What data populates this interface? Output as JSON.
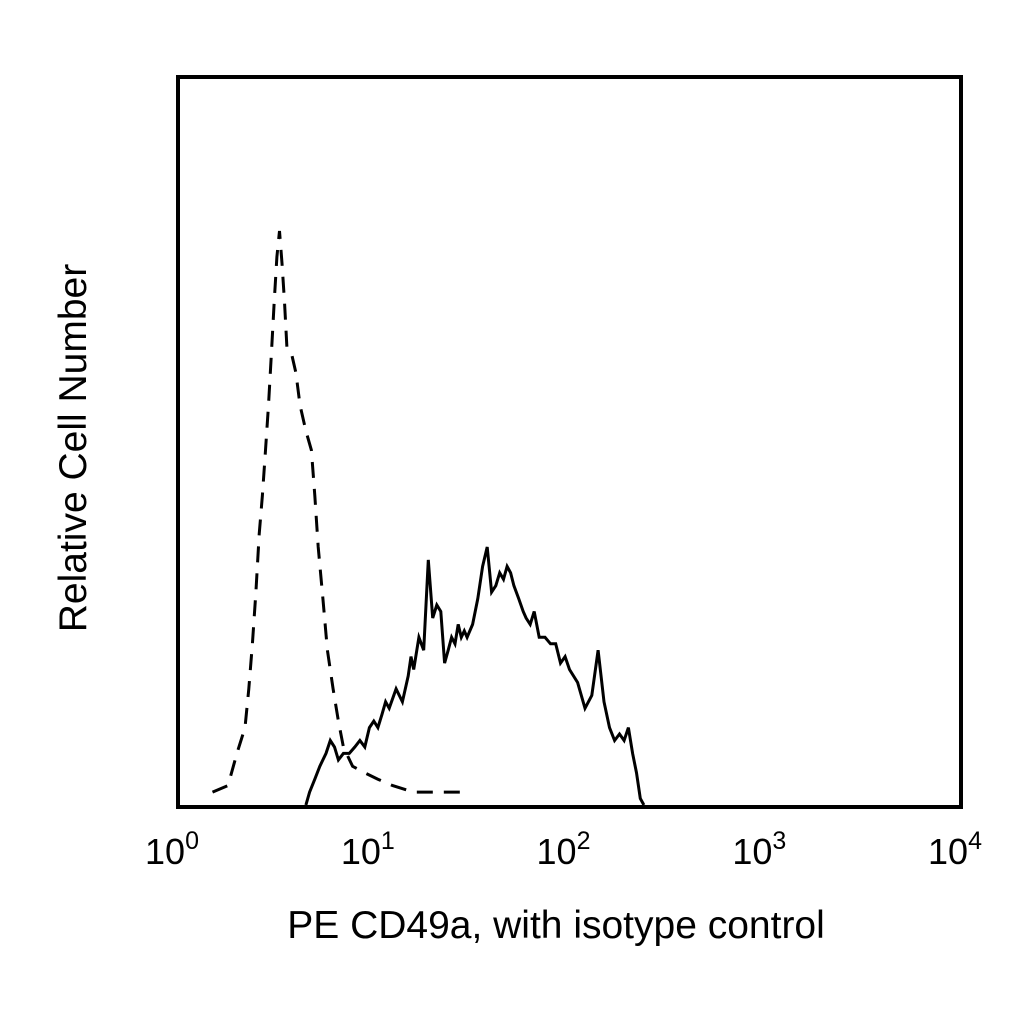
{
  "chart_data": {
    "type": "line",
    "xlabel": "PE CD49a, with isotype control",
    "ylabel": "Relative Cell Number",
    "x_scale": "log",
    "xlim": [
      1,
      10000
    ],
    "ylim": [
      0,
      100
    ],
    "grid": false,
    "legend": "none",
    "x_ticks": [
      {
        "value": 1,
        "base": "10",
        "exp": "0"
      },
      {
        "value": 10,
        "base": "10",
        "exp": "1"
      },
      {
        "value": 100,
        "base": "10",
        "exp": "2"
      },
      {
        "value": 1000,
        "base": "10",
        "exp": "3"
      },
      {
        "value": 10000,
        "base": "10",
        "exp": "4"
      }
    ],
    "series": [
      {
        "style": "dashed",
        "color": "#000000",
        "points": [
          [
            1.5,
            2
          ],
          [
            1.8,
            3
          ],
          [
            2.0,
            8
          ],
          [
            2.2,
            12
          ],
          [
            2.3,
            18
          ],
          [
            2.4,
            25
          ],
          [
            2.5,
            33
          ],
          [
            2.6,
            42
          ],
          [
            2.7,
            48
          ],
          [
            2.8,
            55
          ],
          [
            2.9,
            62
          ],
          [
            3.0,
            70
          ],
          [
            3.1,
            78
          ],
          [
            3.2,
            85
          ],
          [
            3.3,
            89
          ],
          [
            3.4,
            84
          ],
          [
            3.5,
            78
          ],
          [
            3.6,
            71
          ],
          [
            3.8,
            70
          ],
          [
            4.0,
            67
          ],
          [
            4.2,
            62
          ],
          [
            4.5,
            58
          ],
          [
            4.8,
            55
          ],
          [
            5.0,
            48
          ],
          [
            5.2,
            40
          ],
          [
            5.5,
            32
          ],
          [
            5.8,
            24
          ],
          [
            6.2,
            18
          ],
          [
            6.6,
            13
          ],
          [
            7.0,
            9
          ],
          [
            7.8,
            6
          ],
          [
            9.0,
            5
          ],
          [
            10.5,
            4
          ],
          [
            12.5,
            3
          ],
          [
            16,
            2
          ],
          [
            20,
            2
          ],
          [
            25,
            2
          ],
          [
            30,
            2
          ]
        ]
      },
      {
        "style": "solid",
        "color": "#000000",
        "points": [
          [
            4.5,
            0
          ],
          [
            4.7,
            2
          ],
          [
            5.0,
            4
          ],
          [
            5.3,
            6
          ],
          [
            5.7,
            8
          ],
          [
            6.0,
            10
          ],
          [
            6.3,
            9
          ],
          [
            6.6,
            7
          ],
          [
            7.0,
            8
          ],
          [
            7.5,
            8
          ],
          [
            8.0,
            9
          ],
          [
            8.5,
            10
          ],
          [
            9.0,
            9
          ],
          [
            9.5,
            12
          ],
          [
            10,
            13
          ],
          [
            10.5,
            12
          ],
          [
            11,
            14
          ],
          [
            11.5,
            16
          ],
          [
            12,
            15
          ],
          [
            13,
            18
          ],
          [
            14,
            16
          ],
          [
            15,
            20
          ],
          [
            15.5,
            23
          ],
          [
            16,
            21
          ],
          [
            17,
            26
          ],
          [
            18,
            24
          ],
          [
            19,
            38
          ],
          [
            20,
            29
          ],
          [
            21,
            31
          ],
          [
            22,
            30
          ],
          [
            23,
            22
          ],
          [
            24,
            24
          ],
          [
            25,
            26
          ],
          [
            26,
            25
          ],
          [
            27,
            28
          ],
          [
            28,
            26
          ],
          [
            29,
            27
          ],
          [
            30,
            26
          ],
          [
            32,
            28
          ],
          [
            34,
            32
          ],
          [
            36,
            37
          ],
          [
            38,
            40
          ],
          [
            40,
            33
          ],
          [
            42,
            34
          ],
          [
            44,
            36
          ],
          [
            46,
            35
          ],
          [
            48,
            37
          ],
          [
            50,
            36
          ],
          [
            52,
            34
          ],
          [
            55,
            32
          ],
          [
            58,
            30
          ],
          [
            60,
            29
          ],
          [
            63,
            28
          ],
          [
            66,
            30
          ],
          [
            70,
            26
          ],
          [
            75,
            26
          ],
          [
            80,
            25
          ],
          [
            85,
            25
          ],
          [
            90,
            22
          ],
          [
            95,
            23
          ],
          [
            100,
            21
          ],
          [
            110,
            19
          ],
          [
            120,
            15
          ],
          [
            130,
            17
          ],
          [
            140,
            24
          ],
          [
            150,
            16
          ],
          [
            160,
            12
          ],
          [
            170,
            10
          ],
          [
            180,
            11
          ],
          [
            190,
            10
          ],
          [
            200,
            12
          ],
          [
            210,
            8
          ],
          [
            220,
            5
          ],
          [
            230,
            1
          ],
          [
            240,
            0
          ]
        ]
      }
    ]
  }
}
